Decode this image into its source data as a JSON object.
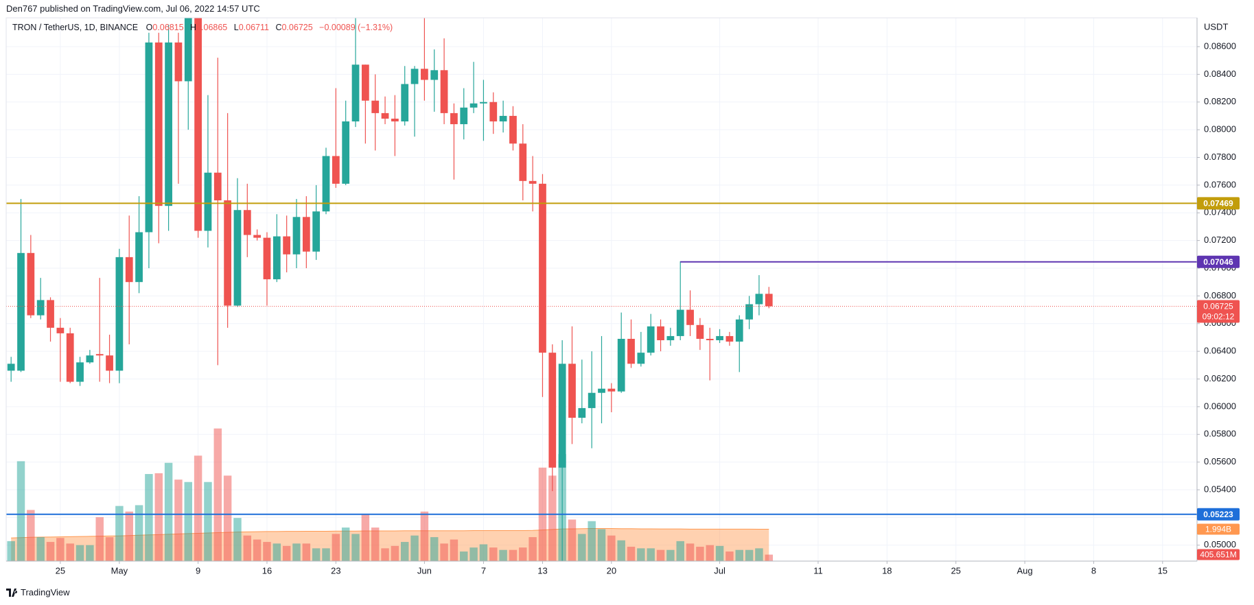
{
  "chart_data": {
    "type": "candlestick",
    "header": "Den767 published on TradingView.com, Jul 06, 2022 14:57 UTC",
    "symbol": "TRON / TetherUS, 1D, BINANCE",
    "ohlc_letters": [
      "O",
      "H",
      "L",
      "C"
    ],
    "change": "−0.00089 (−1.31%)",
    "currency": "USDT",
    "brand": "TradingView",
    "countdown": "09:02:12",
    "up_color": "#26a69a",
    "down_color": "#ef5350",
    "x": [
      "Apr 20",
      "Apr 21",
      "Apr 22",
      "Apr 23",
      "Apr 24",
      "Apr 25",
      "Apr 26",
      "Apr 27",
      "Apr 28",
      "Apr 29",
      "Apr 30",
      "May 1",
      "May 2",
      "May 3",
      "May 4",
      "May 5",
      "May 6",
      "May 7",
      "May 8",
      "May 9",
      "May 10",
      "May 11",
      "May 12",
      "May 13",
      "May 14",
      "May 15",
      "May 16",
      "May 17",
      "May 18",
      "May 19",
      "May 20",
      "May 21",
      "May 22",
      "May 23",
      "May 24",
      "May 25",
      "May 26",
      "May 27",
      "May 28",
      "May 29",
      "May 30",
      "May 31",
      "Jun 1",
      "Jun 2",
      "Jun 3",
      "Jun 4",
      "Jun 5",
      "Jun 6",
      "Jun 7",
      "Jun 8",
      "Jun 9",
      "Jun 10",
      "Jun 11",
      "Jun 12",
      "Jun 13",
      "Jun 14",
      "Jun 15",
      "Jun 16",
      "Jun 17",
      "Jun 18",
      "Jun 19",
      "Jun 20",
      "Jun 21",
      "Jun 22",
      "Jun 23",
      "Jun 24",
      "Jun 25",
      "Jun 26",
      "Jun 27",
      "Jun 28",
      "Jun 29",
      "Jun 30",
      "Jul 1",
      "Jul 2",
      "Jul 3",
      "Jul 4",
      "Jul 5",
      "Jul 6"
    ],
    "open": [
      0.0626,
      0.0626,
      0.0711,
      0.0666,
      0.0677,
      0.0657,
      0.0653,
      0.0618,
      0.0632,
      0.0638,
      0.0637,
      0.0626,
      0.0708,
      0.069,
      0.0726,
      0.0863,
      0.0745,
      0.0863,
      0.0835,
      0.0885,
      0.0727,
      0.0769,
      0.0749,
      0.0673,
      0.0742,
      0.0724,
      0.0722,
      0.0692,
      0.0723,
      0.071,
      0.0737,
      0.0712,
      0.0741,
      0.0781,
      0.0761,
      0.0806,
      0.0847,
      0.0821,
      0.0812,
      0.0808,
      0.0806,
      0.0833,
      0.0844,
      0.0836,
      0.0843,
      0.0812,
      0.0804,
      0.0816,
      0.0819,
      0.082,
      0.0806,
      0.081,
      0.079,
      0.0763,
      0.0761,
      0.0639,
      0.0556,
      0.0631,
      0.0592,
      0.0599,
      0.061,
      0.0613,
      0.0611,
      0.0649,
      0.0631,
      0.0639,
      0.0658,
      0.0648,
      0.0651,
      0.067,
      0.0659,
      0.0649,
      0.0648,
      0.0651,
      0.0647,
      0.0663,
      0.0674,
      0.06815
    ],
    "high": [
      0.0636,
      0.075,
      0.0724,
      0.0693,
      0.0679,
      0.0664,
      0.0657,
      0.0636,
      0.0641,
      0.0693,
      0.0652,
      0.0714,
      0.0738,
      0.0752,
      0.087,
      0.087,
      0.0876,
      0.087,
      0.089,
      0.089,
      0.0825,
      0.0852,
      0.0812,
      0.0765,
      0.0761,
      0.0728,
      0.0726,
      0.0739,
      0.0738,
      0.075,
      0.0752,
      0.076,
      0.0787,
      0.083,
      0.0821,
      0.0881,
      0.0847,
      0.084,
      0.0824,
      0.0825,
      0.0846,
      0.0846,
      0.0881,
      0.0858,
      0.0866,
      0.0819,
      0.083,
      0.0849,
      0.0836,
      0.0827,
      0.0821,
      0.0817,
      0.0804,
      0.0781,
      0.0768,
      0.0645,
      0.0648,
      0.0658,
      0.0634,
      0.064,
      0.0651,
      0.0617,
      0.0668,
      0.0663,
      0.0654,
      0.0667,
      0.0663,
      0.0657,
      0.0705,
      0.0684,
      0.0664,
      0.0657,
      0.0656,
      0.0654,
      0.0666,
      0.068,
      0.0695,
      0.06865
    ],
    "low": [
      0.0618,
      0.0625,
      0.0664,
      0.0663,
      0.0647,
      0.0618,
      0.0617,
      0.0615,
      0.0631,
      0.0618,
      0.0617,
      0.0617,
      0.0645,
      0.0682,
      0.07,
      0.0718,
      0.0727,
      0.0761,
      0.08,
      0.0722,
      0.0715,
      0.063,
      0.0657,
      0.0672,
      0.0708,
      0.072,
      0.0673,
      0.069,
      0.0697,
      0.07,
      0.07,
      0.0706,
      0.0739,
      0.0758,
      0.076,
      0.0802,
      0.079,
      0.0785,
      0.0804,
      0.0781,
      0.0803,
      0.0795,
      0.0821,
      0.0813,
      0.0804,
      0.0764,
      0.0793,
      0.0812,
      0.0792,
      0.0797,
      0.0798,
      0.0785,
      0.0749,
      0.0741,
      0.0607,
      0.0539,
      0.0488,
      0.0573,
      0.0588,
      0.057,
      0.0588,
      0.0596,
      0.061,
      0.0628,
      0.0629,
      0.0637,
      0.064,
      0.0644,
      0.0648,
      0.0651,
      0.0641,
      0.0619,
      0.0646,
      0.0644,
      0.0625,
      0.0656,
      0.0666,
      0.06711
    ],
    "close": [
      0.0631,
      0.0711,
      0.0666,
      0.0677,
      0.0657,
      0.0653,
      0.0618,
      0.0632,
      0.0637,
      0.0637,
      0.0626,
      0.0708,
      0.069,
      0.0726,
      0.0863,
      0.0745,
      0.0863,
      0.0835,
      0.0885,
      0.0727,
      0.0769,
      0.0749,
      0.0673,
      0.0742,
      0.0724,
      0.0722,
      0.0692,
      0.0723,
      0.071,
      0.0737,
      0.0712,
      0.0741,
      0.0781,
      0.0761,
      0.0806,
      0.0847,
      0.0821,
      0.0812,
      0.0808,
      0.0806,
      0.0833,
      0.0844,
      0.0836,
      0.0843,
      0.0812,
      0.0804,
      0.0816,
      0.0819,
      0.082,
      0.0806,
      0.081,
      0.079,
      0.0763,
      0.0761,
      0.0639,
      0.0556,
      0.0631,
      0.0592,
      0.0599,
      0.061,
      0.0613,
      0.0611,
      0.0649,
      0.0631,
      0.0639,
      0.0658,
      0.0648,
      0.0651,
      0.067,
      0.0659,
      0.0649,
      0.0648,
      0.0651,
      0.0647,
      0.0663,
      0.0674,
      0.06815,
      0.06725
    ],
    "volume": {
      "values": [
        1250,
        6250,
        3200,
        1500,
        1200,
        1450,
        1100,
        1000,
        1000,
        2750,
        1500,
        3450,
        3100,
        3500,
        5450,
        5500,
        6150,
        5100,
        4950,
        6600,
        4950,
        8300,
        5350,
        2700,
        1600,
        1350,
        1200,
        1100,
        950,
        1100,
        1100,
        800,
        800,
        1700,
        2100,
        1700,
        2900,
        2100,
        800,
        950,
        1200,
        1600,
        3100,
        1500,
        1100,
        1350,
        600,
        850,
        1050,
        850,
        700,
        700,
        850,
        1500,
        5850,
        5350,
        6700,
        2600,
        1700,
        2500,
        2000,
        1600,
        1300,
        900,
        800,
        800,
        700,
        700,
        1250,
        1100,
        900,
        1000,
        950,
        600,
        700,
        700,
        800,
        405.651
      ],
      "label": "405.651M",
      "up_color": "rgba(38,166,154,0.5)",
      "down_color": "rgba(239,83,80,0.5)",
      "vlim": [
        0,
        34000
      ]
    },
    "volume_ma": {
      "values": [
        1450,
        1470,
        1490,
        1500,
        1510,
        1520,
        1530,
        1540,
        1550,
        1560,
        1570,
        1580,
        1600,
        1620,
        1640,
        1660,
        1680,
        1700,
        1720,
        1740,
        1760,
        1780,
        1800,
        1820,
        1830,
        1840,
        1850,
        1850,
        1860,
        1860,
        1870,
        1870,
        1870,
        1880,
        1880,
        1880,
        1890,
        1890,
        1890,
        1890,
        1900,
        1900,
        1900,
        1900,
        1900,
        1900,
        1900,
        1910,
        1910,
        1910,
        1910,
        1910,
        1910,
        1920,
        1950,
        1980,
        2010,
        2020,
        2030,
        2040,
        2040,
        2040,
        2030,
        2030,
        2020,
        2020,
        2010,
        2010,
        2010,
        2000,
        2000,
        2000,
        2000,
        2000,
        2000,
        2000,
        1995,
        1994
      ],
      "label": "1.994B",
      "color": "#ff9850",
      "fill": "rgba(255,152,80,0.45)"
    },
    "levels": [
      {
        "value": 0.07469,
        "color": "#c29d0b"
      },
      {
        "value": 0.07046,
        "color": "#5e35b1",
        "from": "Jun 27"
      },
      {
        "value": 0.05223,
        "color": "#1e6fd9"
      }
    ],
    "ylim": [
      0.04885,
      0.08808
    ],
    "yticks": [
      {
        "value": 0.05,
        "label": "0.05000"
      },
      {
        "value": 0.052,
        "label": "0.05200"
      },
      {
        "value": 0.054,
        "label": "0.05400"
      },
      {
        "value": 0.056,
        "label": "0.05600"
      },
      {
        "value": 0.058,
        "label": "0.05800"
      },
      {
        "value": 0.06,
        "label": "0.06000"
      },
      {
        "value": 0.062,
        "label": "0.06200"
      },
      {
        "value": 0.064,
        "label": "0.06400"
      },
      {
        "value": 0.066,
        "label": "0.06600"
      },
      {
        "value": 0.068,
        "label": "0.06800"
      },
      {
        "value": 0.07,
        "label": "0.07000"
      },
      {
        "value": 0.072,
        "label": "0.07200"
      },
      {
        "value": 0.074,
        "label": "0.07400"
      },
      {
        "value": 0.076,
        "label": "0.07600"
      },
      {
        "value": 0.078,
        "label": "0.07800"
      },
      {
        "value": 0.08,
        "label": "0.08000"
      },
      {
        "value": 0.082,
        "label": "0.08200"
      },
      {
        "value": 0.084,
        "label": "0.08400"
      },
      {
        "value": 0.086,
        "label": "0.08600"
      }
    ],
    "xlim": [
      "Apr 20",
      "Aug 18"
    ],
    "xticks": [
      {
        "value": "Apr 25",
        "label": "25"
      },
      {
        "value": "May 1",
        "label": "May"
      },
      {
        "value": "May 9",
        "label": "9"
      },
      {
        "value": "May 16",
        "label": "16"
      },
      {
        "value": "May 23",
        "label": "23"
      },
      {
        "value": "Jun 1",
        "label": "Jun"
      },
      {
        "value": "Jun 7",
        "label": "7"
      },
      {
        "value": "Jun 13",
        "label": "13"
      },
      {
        "value": "Jun 20",
        "label": "20"
      },
      {
        "value": "Jul 1",
        "label": "Jul"
      },
      {
        "value": "Jul 11",
        "label": "11"
      },
      {
        "value": "Jul 18",
        "label": "18"
      },
      {
        "value": "Jul 25",
        "label": "25"
      },
      {
        "value": "Aug 1",
        "label": "Aug"
      },
      {
        "value": "Aug 8",
        "label": "8"
      },
      {
        "value": "Aug 15",
        "label": "15"
      }
    ],
    "grid": true
  }
}
